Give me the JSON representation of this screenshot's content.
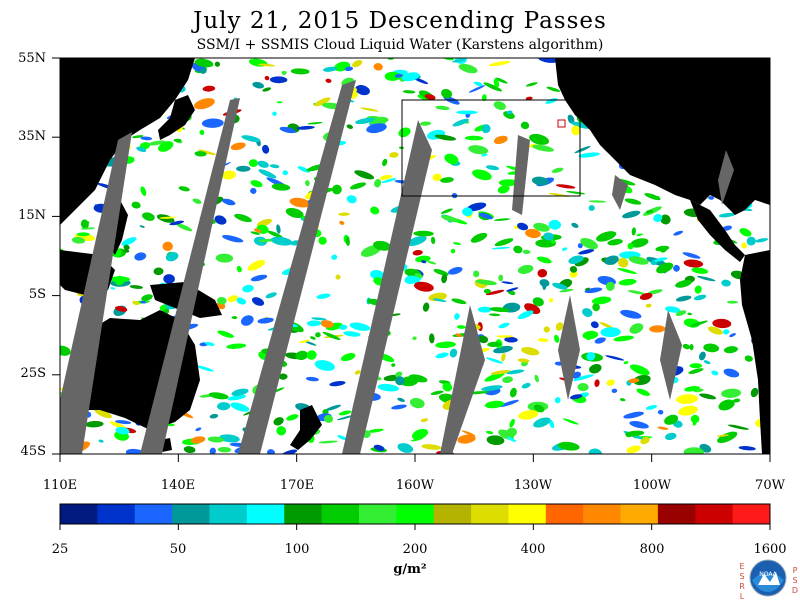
{
  "title": "July 21, 2015  Descending Passes",
  "subtitle": "SSM/I + SSMIS Cloud Liquid Water (Karstens algorithm)",
  "lat_labels": [
    "55N",
    "35N",
    "15N",
    "5S",
    "25S",
    "45S"
  ],
  "lon_labels": [
    "110E",
    "140E",
    "170E",
    "160W",
    "130W",
    "100W",
    "70W"
  ],
  "colorbar": {
    "tick_labels": [
      "25",
      "50",
      "100",
      "200",
      "400",
      "800",
      "1600"
    ],
    "units": "g/m²",
    "colors": [
      "#001a80",
      "#0033cc",
      "#1a66ff",
      "#009999",
      "#00cccc",
      "#00ffff",
      "#009900",
      "#00cc00",
      "#33ee33",
      "#00ff00",
      "#b3b300",
      "#dddd00",
      "#ffff00",
      "#ff6600",
      "#ff8800",
      "#ffaa00",
      "#990000",
      "#cc0000",
      "#ff1a1a"
    ]
  },
  "logo": {
    "left_letters": [
      "E",
      "S",
      "R",
      "L"
    ],
    "right_letters": [
      "P",
      "S",
      "D"
    ],
    "center_text": "NOAA"
  },
  "colors": {
    "ocean": "#ffffff",
    "land": "#000000",
    "missing_swath": "#666666",
    "box": "#000000"
  }
}
